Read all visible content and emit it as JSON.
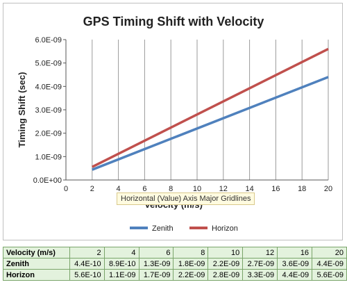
{
  "chart_data": {
    "type": "line",
    "title": "GPS Timing Shift with Velocity",
    "xlabel": "Velocity (m/s)",
    "ylabel": "Timing Shift (sec)",
    "xlim": [
      0,
      20
    ],
    "ylim": [
      0,
      6e-09
    ],
    "x_ticks": [
      "0",
      "2",
      "4",
      "6",
      "8",
      "10",
      "12",
      "14",
      "16",
      "18",
      "20"
    ],
    "y_ticks": [
      "0.0E+00",
      "1.0E-09",
      "2.0E-09",
      "3.0E-09",
      "4.0E-09",
      "5.0E-09",
      "6.0E-09"
    ],
    "grid": "vertical",
    "legend_position": "bottom",
    "x": [
      2,
      20
    ],
    "series": [
      {
        "name": "Zenith",
        "color": "#4f81bd",
        "values": [
          4.4e-10,
          4.4e-09
        ]
      },
      {
        "name": "Horizon",
        "color": "#c0504d",
        "values": [
          5.6e-10,
          5.6e-09
        ]
      }
    ]
  },
  "tooltip": "Horizontal (Value) Axis Major Gridlines",
  "table": {
    "header": {
      "label": "Velocity (m/s)",
      "cells": [
        "2",
        "4",
        "6",
        "8",
        "10",
        "12",
        "16",
        "20"
      ]
    },
    "rows": [
      {
        "label": "Zenith",
        "cells": [
          "4.4E-10",
          "8.9E-10",
          "1.3E-09",
          "1.8E-09",
          "2.2E-09",
          "2.7E-09",
          "3.6E-09",
          "4.4E-09"
        ]
      },
      {
        "label": "Horizon",
        "cells": [
          "5.6E-10",
          "1.1E-09",
          "1.7E-09",
          "2.2E-09",
          "2.8E-09",
          "3.3E-09",
          "4.4E-09",
          "5.6E-09"
        ]
      }
    ]
  }
}
